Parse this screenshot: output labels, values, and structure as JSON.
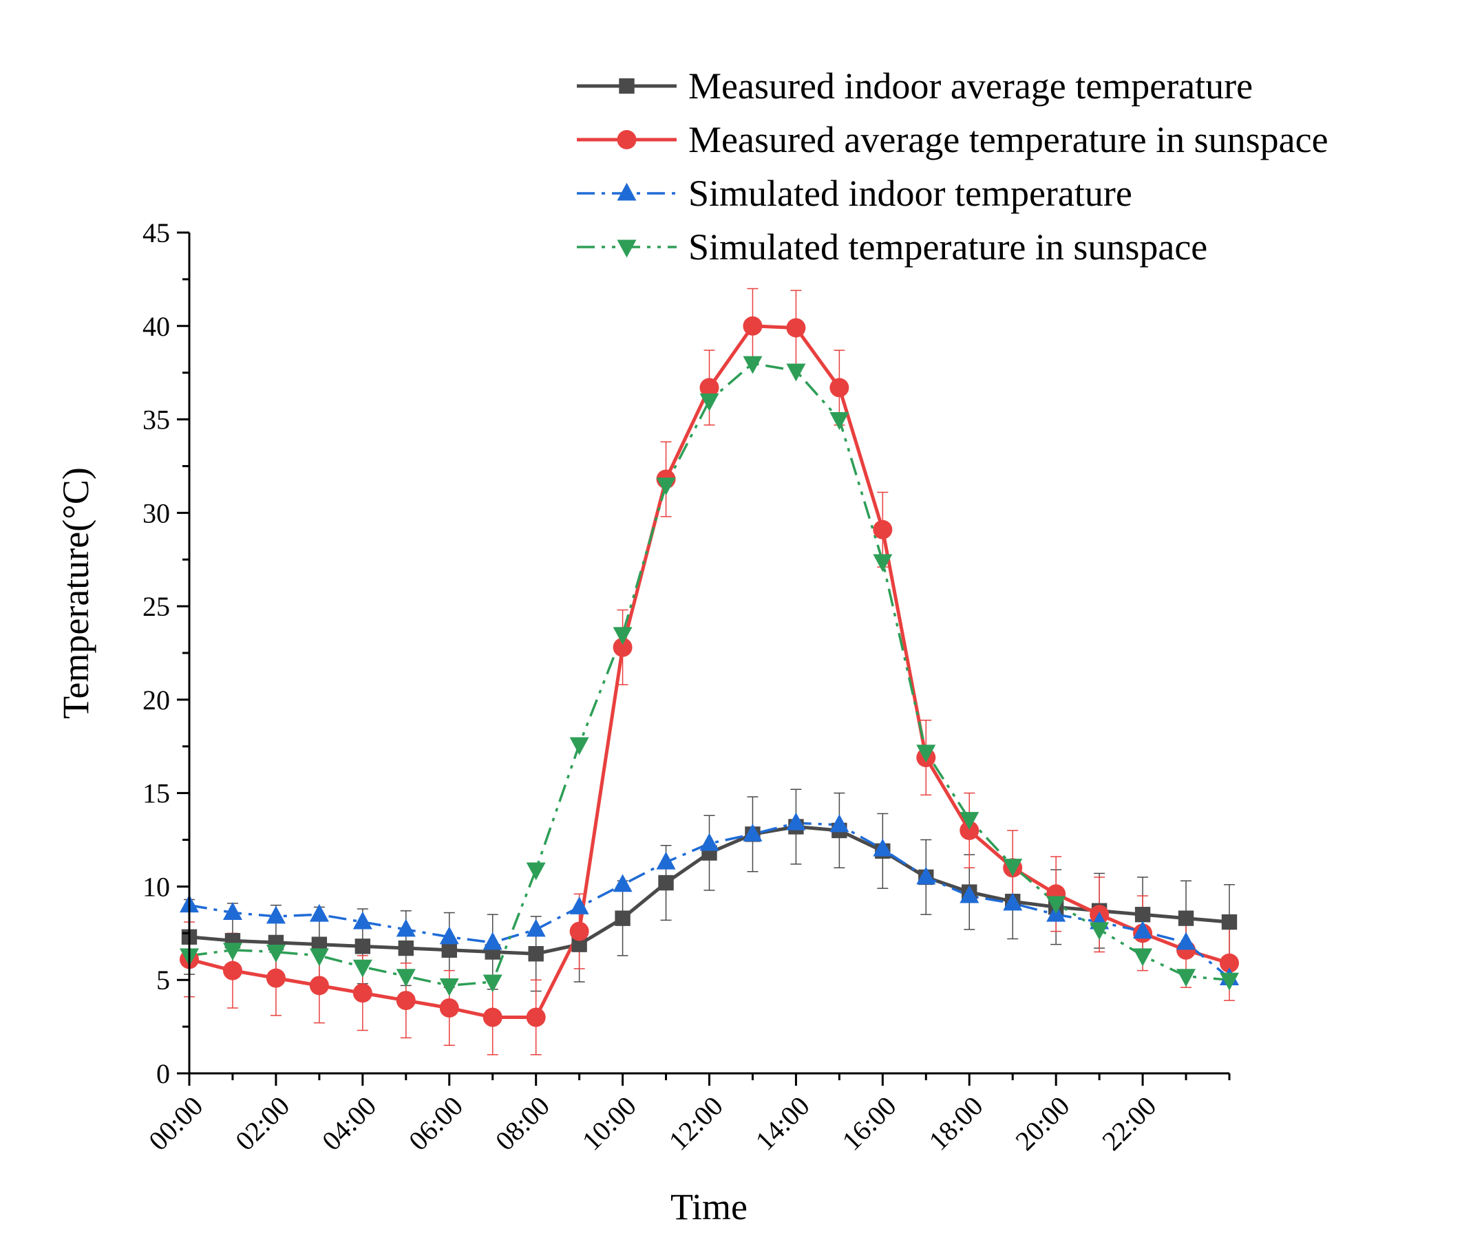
{
  "chart_data": {
    "type": "line",
    "xlabel": "Time",
    "ylabel": "Temperature(°C)",
    "ylim": [
      0,
      45
    ],
    "x_tick_labels": [
      "00:00",
      "02:00",
      "04:00",
      "06:00",
      "08:00",
      "10:00",
      "12:00",
      "14:00",
      "16:00",
      "18:00",
      "20:00",
      "22:00"
    ],
    "y_tick_labels": [
      "0",
      "5",
      "10",
      "15",
      "20",
      "25",
      "30",
      "35",
      "40",
      "45"
    ],
    "x_hours": [
      0,
      1,
      2,
      3,
      4,
      5,
      6,
      7,
      8,
      9,
      10,
      11,
      12,
      13,
      14,
      15,
      16,
      17,
      18,
      19,
      20,
      21,
      22,
      23,
      24
    ],
    "legend_position": "top-right",
    "series": [
      {
        "name": "Measured indoor average temperature",
        "color": "#4a4a4a",
        "marker": "square",
        "dash": "solid",
        "values": [
          7.3,
          7.1,
          7.0,
          6.9,
          6.8,
          6.7,
          6.6,
          6.5,
          6.4,
          6.9,
          8.3,
          10.2,
          11.8,
          12.8,
          13.2,
          13.0,
          11.9,
          10.5,
          9.7,
          9.2,
          8.9,
          8.7,
          8.5,
          8.3,
          8.1
        ],
        "error": [
          2,
          2,
          2,
          2,
          2,
          2,
          2,
          2,
          2,
          2,
          2,
          2,
          2,
          2,
          2,
          2,
          2,
          2,
          2,
          2,
          2,
          2,
          2,
          2,
          2
        ]
      },
      {
        "name": "Measured average temperature in sunspace",
        "color": "#e8403f",
        "marker": "circle",
        "dash": "solid",
        "values": [
          6.1,
          5.5,
          5.1,
          4.7,
          4.3,
          3.9,
          3.5,
          3.0,
          3.0,
          7.6,
          22.8,
          31.8,
          36.7,
          40.0,
          39.9,
          36.7,
          29.1,
          16.9,
          13.0,
          11.0,
          9.6,
          8.5,
          7.5,
          6.6,
          5.9
        ],
        "error": [
          2,
          2,
          2,
          2,
          2,
          2,
          2,
          2,
          2,
          2,
          2,
          2,
          2,
          2,
          2,
          2,
          2,
          2,
          2,
          2,
          2,
          2,
          2,
          2,
          2
        ]
      },
      {
        "name": "Simulated indoor temperature",
        "color": "#1f6bd6",
        "marker": "triangle-up",
        "dash": "dashdot",
        "values": [
          9.0,
          8.6,
          8.4,
          8.5,
          8.1,
          7.7,
          7.3,
          7.0,
          7.7,
          8.9,
          10.1,
          11.3,
          12.3,
          12.8,
          13.4,
          13.3,
          12.0,
          10.5,
          9.5,
          9.1,
          8.5,
          8.1,
          7.6,
          7.0,
          5.1
        ]
      },
      {
        "name": "Simulated temperature in sunspace",
        "color": "#2e9e57",
        "marker": "triangle-down",
        "dash": "dashdotdot",
        "values": [
          6.3,
          6.6,
          6.5,
          6.3,
          5.7,
          5.2,
          4.7,
          4.9,
          10.9,
          17.6,
          23.5,
          31.5,
          36.0,
          38.0,
          37.6,
          35.0,
          27.4,
          17.2,
          13.6,
          11.1,
          9.1,
          7.7,
          6.3,
          5.2,
          5.0
        ]
      }
    ]
  }
}
